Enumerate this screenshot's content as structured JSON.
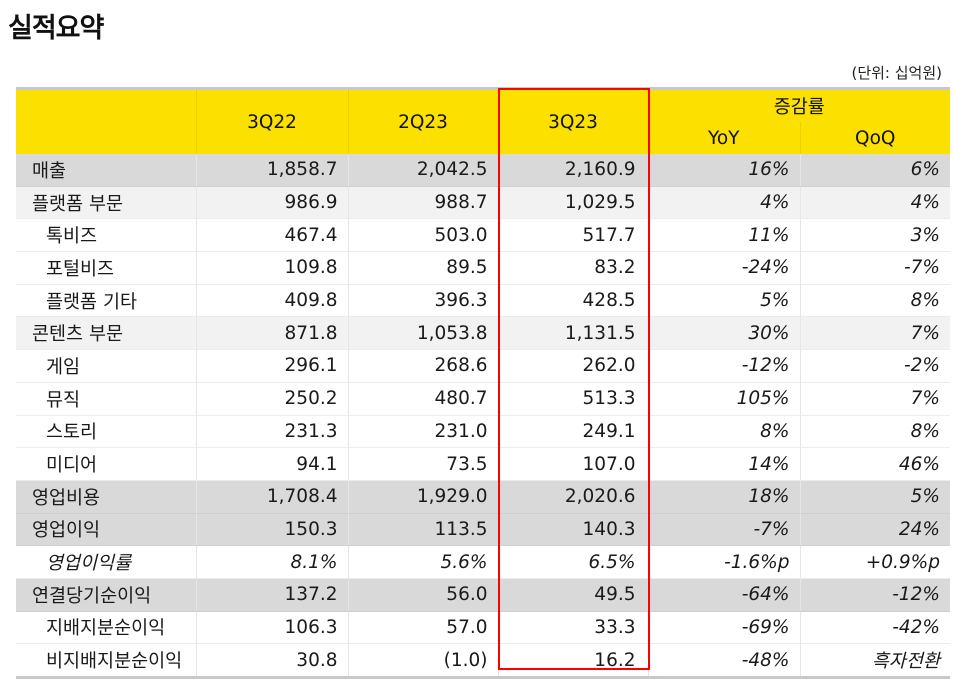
{
  "page": {
    "title": "실적요약",
    "unit": "(단위: 십억원)"
  },
  "table": {
    "headers": {
      "col1": "3Q22",
      "col2": "2Q23",
      "col3": "3Q23",
      "growth_group": "증감률",
      "yoy": "YoY",
      "qoq": "QoQ"
    },
    "highlighted_column": "3Q23",
    "highlight_color": "#ff0000",
    "header_color": "#fce000",
    "rows": [
      {
        "label": "매출",
        "q3_22": "1,858.7",
        "q2_23": "2,042.5",
        "q3_23": "2,160.9",
        "yoy": "16%",
        "qoq": "6%"
      },
      {
        "label": "플랫폼 부문",
        "q3_22": "986.9",
        "q2_23": "988.7",
        "q3_23": "1,029.5",
        "yoy": "4%",
        "qoq": "4%"
      },
      {
        "label": "톡비즈",
        "q3_22": "467.4",
        "q2_23": "503.0",
        "q3_23": "517.7",
        "yoy": "11%",
        "qoq": "3%"
      },
      {
        "label": "포털비즈",
        "q3_22": "109.8",
        "q2_23": "89.5",
        "q3_23": "83.2",
        "yoy": "-24%",
        "qoq": "-7%"
      },
      {
        "label": "플랫폼 기타",
        "q3_22": "409.8",
        "q2_23": "396.3",
        "q3_23": "428.5",
        "yoy": "5%",
        "qoq": "8%"
      },
      {
        "label": "콘텐츠 부문",
        "q3_22": "871.8",
        "q2_23": "1,053.8",
        "q3_23": "1,131.5",
        "yoy": "30%",
        "qoq": "7%"
      },
      {
        "label": "게임",
        "q3_22": "296.1",
        "q2_23": "268.6",
        "q3_23": "262.0",
        "yoy": "-12%",
        "qoq": "-2%"
      },
      {
        "label": "뮤직",
        "q3_22": "250.2",
        "q2_23": "480.7",
        "q3_23": "513.3",
        "yoy": "105%",
        "qoq": "7%"
      },
      {
        "label": "스토리",
        "q3_22": "231.3",
        "q2_23": "231.0",
        "q3_23": "249.1",
        "yoy": "8%",
        "qoq": "8%"
      },
      {
        "label": "미디어",
        "q3_22": "94.1",
        "q2_23": "73.5",
        "q3_23": "107.0",
        "yoy": "14%",
        "qoq": "46%"
      },
      {
        "label": "영업비용",
        "q3_22": "1,708.4",
        "q2_23": "1,929.0",
        "q3_23": "2,020.6",
        "yoy": "18%",
        "qoq": "5%"
      },
      {
        "label": "영업이익",
        "q3_22": "150.3",
        "q2_23": "113.5",
        "q3_23": "140.3",
        "yoy": "-7%",
        "qoq": "24%"
      },
      {
        "label": "영업이익률",
        "q3_22": "8.1%",
        "q2_23": "5.6%",
        "q3_23": "6.5%",
        "yoy": "-1.6%p",
        "qoq": "+0.9%p"
      },
      {
        "label": "연결당기순이익",
        "q3_22": "137.2",
        "q2_23": "56.0",
        "q3_23": "49.5",
        "yoy": "-64%",
        "qoq": "-12%"
      },
      {
        "label": "지배지분순이익",
        "q3_22": "106.3",
        "q2_23": "57.0",
        "q3_23": "33.3",
        "yoy": "-69%",
        "qoq": "-42%"
      },
      {
        "label": "비지배지분순이익",
        "q3_22": "30.8",
        "q2_23": "(1.0)",
        "q3_23": "16.2",
        "yoy": "-48%",
        "qoq": "흑자전환"
      }
    ]
  }
}
